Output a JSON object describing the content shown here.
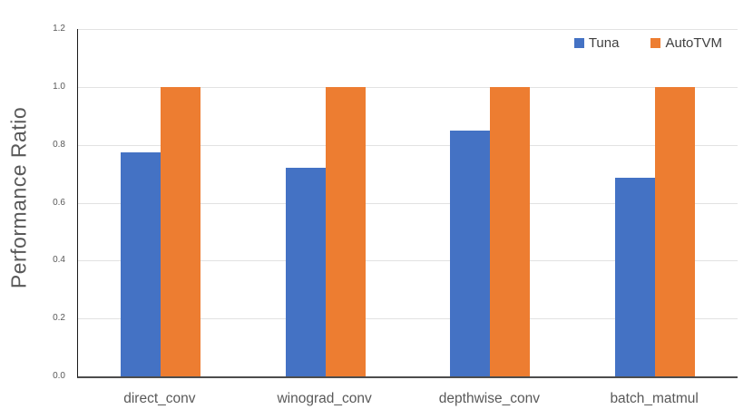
{
  "chart_data": {
    "type": "bar",
    "title": "",
    "xlabel": "",
    "ylabel": "Performance Ratio",
    "categories": [
      "direct_conv",
      "winograd_conv",
      "depthwise_conv",
      "batch_matmul"
    ],
    "series": [
      {
        "name": "Tuna",
        "color": "#4472C4",
        "values": [
          0.775,
          0.72,
          0.85,
          0.685
        ]
      },
      {
        "name": "AutoTVM",
        "color": "#ED7D31",
        "values": [
          1.0,
          1.0,
          1.0,
          1.0
        ]
      }
    ],
    "ylim": [
      0,
      1.2
    ],
    "yticks": [
      0.0,
      0.2,
      0.4,
      0.6,
      0.8,
      1.0,
      1.2
    ],
    "grid": true,
    "legend_position": "top-right"
  },
  "colors": {
    "background": "#FFFFFF",
    "gridline": "#E2E2E2",
    "y_axis_line": "#1A1A1A",
    "baseline": "#4D4D4D",
    "tick_label": "#595959",
    "category_label": "#595959",
    "axis_title": "#595959",
    "legend_text": "#404040"
  }
}
